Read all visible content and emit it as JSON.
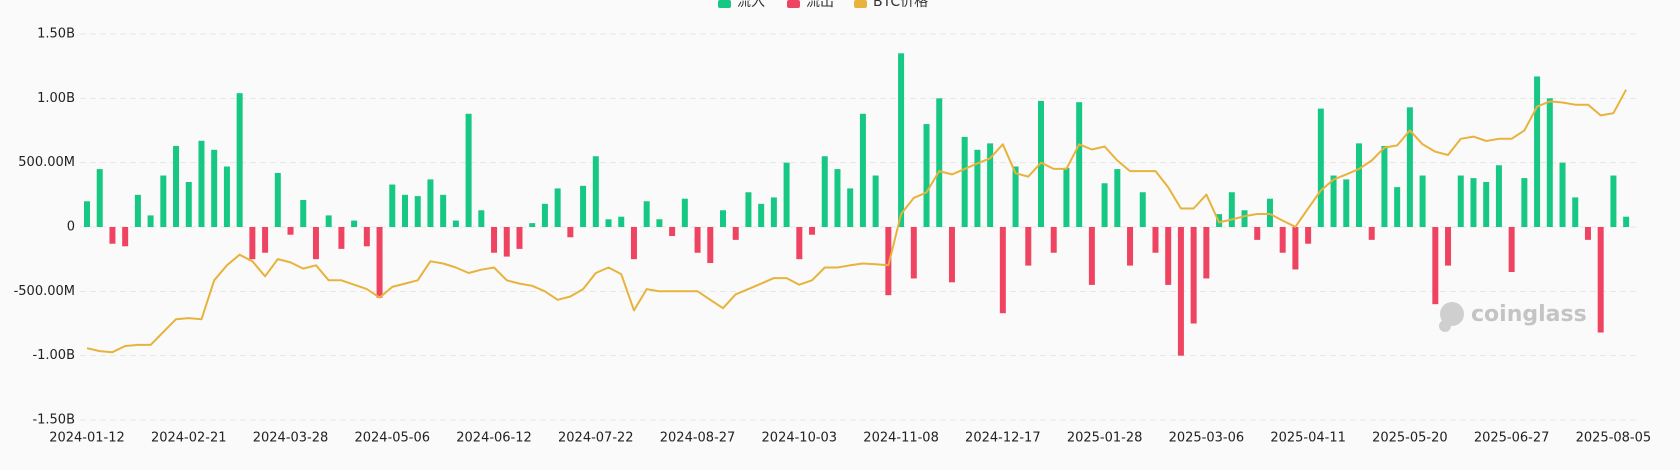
{
  "chart_data": {
    "type": "bar",
    "categories": [
      "2024-01-12",
      null,
      null,
      null,
      null,
      null,
      null,
      null,
      "2024-02-21",
      null,
      null,
      null,
      null,
      null,
      null,
      null,
      "2024-03-28",
      null,
      null,
      null,
      null,
      null,
      null,
      null,
      "2024-05-06",
      null,
      null,
      null,
      null,
      null,
      null,
      null,
      "2024-06-12",
      null,
      null,
      null,
      null,
      null,
      null,
      null,
      "2024-07-22",
      null,
      null,
      null,
      null,
      null,
      null,
      null,
      "2024-08-27",
      null,
      null,
      null,
      null,
      null,
      null,
      null,
      "2024-10-03",
      null,
      null,
      null,
      null,
      null,
      null,
      null,
      "2024-11-08",
      null,
      null,
      null,
      null,
      null,
      null,
      null,
      "2024-12-17",
      null,
      null,
      null,
      null,
      null,
      null,
      null,
      "2025-01-28",
      null,
      null,
      null,
      null,
      null,
      null,
      null,
      "2025-03-06",
      null,
      null,
      null,
      null,
      null,
      null,
      null,
      "2025-04-11",
      null,
      null,
      null,
      null,
      null,
      null,
      null,
      "2025-05-20",
      null,
      null,
      null,
      null,
      null,
      null,
      null,
      "2025-06-27",
      null,
      null,
      null,
      null,
      null,
      null,
      null,
      "2025-08-05",
      null
    ],
    "series": [
      {
        "name": "流入",
        "color": "#17c784",
        "values": [
          200,
          450,
          null,
          null,
          250,
          90,
          400,
          630,
          350,
          670,
          600,
          470,
          1040,
          null,
          null,
          420,
          null,
          210,
          null,
          90,
          null,
          50,
          null,
          null,
          330,
          250,
          240,
          370,
          250,
          50,
          880,
          130,
          null,
          null,
          null,
          30,
          180,
          300,
          null,
          320,
          550,
          60,
          80,
          null,
          200,
          60,
          null,
          220,
          null,
          null,
          130,
          null,
          270,
          180,
          230,
          500,
          null,
          null,
          550,
          450,
          300,
          880,
          400,
          null,
          1350,
          null,
          800,
          1000,
          null,
          700,
          600,
          650,
          null,
          470,
          null,
          980,
          null,
          460,
          970,
          null,
          340,
          450,
          null,
          270,
          null,
          null,
          null,
          null,
          null,
          100,
          270,
          130,
          null,
          220,
          null,
          null,
          null,
          920,
          400,
          370,
          650,
          null,
          630,
          310,
          930,
          400,
          null,
          null,
          400,
          380,
          350,
          480,
          null,
          380,
          1170,
          1000,
          500,
          230,
          null,
          null,
          400,
          80
        ]
      },
      {
        "name": "流出",
        "color": "#ef4461",
        "values": [
          null,
          null,
          -130,
          -150,
          null,
          null,
          null,
          null,
          null,
          null,
          null,
          null,
          null,
          -250,
          -200,
          null,
          -60,
          null,
          -250,
          null,
          -170,
          null,
          -150,
          -550,
          null,
          null,
          null,
          null,
          null,
          null,
          null,
          null,
          -200,
          -230,
          -170,
          null,
          null,
          null,
          -80,
          null,
          null,
          null,
          null,
          -250,
          null,
          null,
          -70,
          null,
          -200,
          -280,
          null,
          -100,
          null,
          null,
          null,
          null,
          -250,
          -60,
          null,
          null,
          null,
          null,
          null,
          -530,
          null,
          -400,
          null,
          null,
          -430,
          null,
          null,
          null,
          -670,
          null,
          -300,
          null,
          -200,
          null,
          null,
          -450,
          null,
          null,
          -300,
          null,
          -200,
          -450,
          -1000,
          -750,
          -400,
          null,
          null,
          null,
          -100,
          null,
          -200,
          -330,
          -130,
          null,
          null,
          null,
          null,
          -100,
          null,
          null,
          null,
          null,
          -600,
          -300,
          null,
          null,
          null,
          null,
          -350,
          null,
          null,
          null,
          null,
          null,
          -100,
          -820,
          null,
          null
        ]
      },
      {
        "name": "BTC价格",
        "color": "#e8b33c",
        "type": "line",
        "axis": "y2",
        "values": [
          45900,
          45100,
          44800,
          46500,
          46800,
          46800,
          50300,
          53800,
          54100,
          53800,
          64400,
          68500,
          71400,
          69600,
          65500,
          70200,
          69300,
          67600,
          68500,
          64400,
          64400,
          63200,
          62000,
          59700,
          62600,
          63500,
          64400,
          69600,
          69000,
          67900,
          66400,
          67300,
          67900,
          64400,
          63500,
          62900,
          61400,
          59100,
          60000,
          62000,
          66400,
          67900,
          66100,
          56200,
          62000,
          61400,
          61400,
          61400,
          61400,
          59100,
          56800,
          60600,
          62000,
          63500,
          65000,
          65000,
          63200,
          64400,
          67900,
          67900,
          68500,
          69000,
          68800,
          68500,
          82500,
          86900,
          88400,
          94200,
          93300,
          94800,
          96300,
          97700,
          101500,
          93600,
          92700,
          96500,
          94800,
          94800,
          101500,
          100100,
          100900,
          97100,
          94200,
          94200,
          94200,
          89800,
          84000,
          84000,
          87800,
          80200,
          81000,
          81900,
          82500,
          82500,
          80700,
          79000,
          84000,
          88900,
          91900,
          93300,
          94800,
          97100,
          100600,
          101200,
          105300,
          101500,
          99500,
          98600,
          103000,
          103600,
          102400,
          103000,
          103000,
          105300,
          111800,
          113200,
          112900,
          112300,
          112300,
          109400,
          110000,
          116400
        ]
      }
    ],
    "ylim": [
      -1500,
      1500
    ],
    "yticks": [
      {
        "value": -1500,
        "label": "-1.50B"
      },
      {
        "value": -1000,
        "label": "-1.00B"
      },
      {
        "value": -500,
        "label": "-500.00M"
      },
      0,
      {
        "value": 500,
        "label": "500.00M"
      },
      {
        "value": 1000,
        "label": "1.00B"
      },
      {
        "value": 1500,
        "label": "1.50B"
      }
    ],
    "y2lim": [
      26300,
      131600
    ],
    "grid": true,
    "legend": "top",
    "watermark": "coinglass"
  }
}
